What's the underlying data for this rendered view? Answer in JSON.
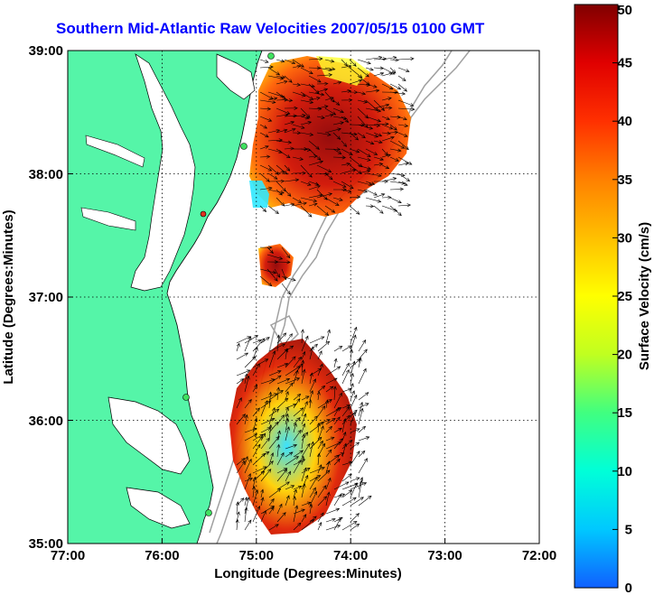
{
  "title": "Southern Mid-Atlantic Raw Velocities 2007/05/15 0100 GMT",
  "xlabel": "Longitude (Degrees:Minutes)",
  "ylabel": "Latitude (Degrees:Minutes)",
  "colorbar": {
    "label": "Surface Velocity (cm/s)",
    "ticks": [
      "0",
      "5",
      "10",
      "15",
      "20",
      "25",
      "30",
      "35",
      "40",
      "45",
      "50"
    ],
    "min": 0,
    "max": 50,
    "colors": [
      "#1060ff",
      "#00c8ff",
      "#00ffd8",
      "#40ff80",
      "#c0ff20",
      "#ffff00",
      "#ffc000",
      "#ff8000",
      "#ff3000",
      "#e00000",
      "#800000"
    ]
  },
  "x_ticks": [
    "77:00",
    "76:00",
    "75:00",
    "74:00",
    "73:00",
    "72:00"
  ],
  "y_ticks": [
    "39:00",
    "38:00",
    "37:00",
    "36:00",
    "35:00"
  ],
  "land_color": "#55f5a8",
  "bathymetry_color": "#a0a0a0"
}
